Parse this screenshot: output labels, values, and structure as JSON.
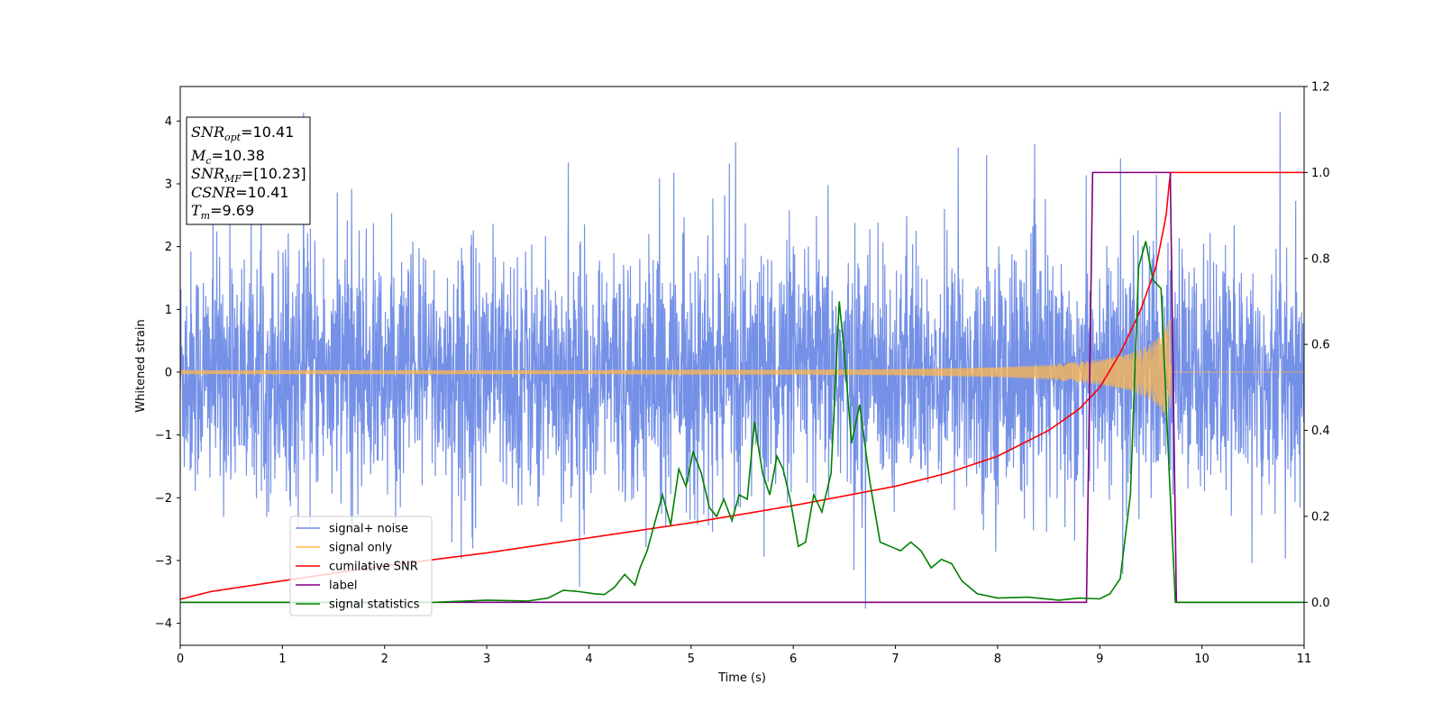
{
  "chart_data": {
    "type": "line",
    "xlabel": "Time (s)",
    "ylabel": "Whitened strain",
    "xlim": [
      0,
      11
    ],
    "ylim_left": [
      -4.35,
      4.55
    ],
    "ylim_right": [
      -0.1,
      1.2
    ],
    "xticks": [
      0,
      1,
      2,
      3,
      4,
      5,
      6,
      7,
      8,
      9,
      10,
      11
    ],
    "yticks_left": [
      -4,
      -3,
      -2,
      -1,
      0,
      1,
      2,
      3,
      4
    ],
    "yticks_right": [
      0.0,
      0.2,
      0.4,
      0.6,
      0.8,
      1.0,
      1.2
    ],
    "legend_placement": "lower-left",
    "series": [
      {
        "name": "signal+ noise",
        "axis": "left",
        "color": "#6d8ae6",
        "description_only": true,
        "approx_envelope": {
          "lower": [
            -3.5,
            -4.0
          ],
          "upper": [
            3.7,
            4.2
          ]
        }
      },
      {
        "name": "signal only",
        "axis": "left",
        "color": "#ffb84d",
        "x": [
          0,
          2,
          4,
          5,
          6,
          7,
          8,
          8.5,
          9,
          9.3,
          9.5,
          9.6,
          9.69,
          9.7,
          11
        ],
        "amplitude": [
          0.03,
          0.03,
          0.03,
          0.04,
          0.04,
          0.05,
          0.08,
          0.12,
          0.2,
          0.3,
          0.45,
          0.6,
          0.85,
          0,
          0
        ]
      },
      {
        "name": "cumilative SNR",
        "axis": "right",
        "color": "#ff0000",
        "x": [
          0,
          0.3,
          1,
          2,
          3,
          4,
          5,
          6,
          7,
          7.5,
          8,
          8.5,
          8.8,
          9,
          9.2,
          9.4,
          9.55,
          9.65,
          9.69,
          9.7,
          11
        ],
        "values": [
          0.007,
          0.025,
          0.05,
          0.085,
          0.115,
          0.15,
          0.185,
          0.225,
          0.27,
          0.3,
          0.34,
          0.4,
          0.45,
          0.5,
          0.58,
          0.68,
          0.78,
          0.9,
          1.0,
          1.0,
          1.0
        ]
      },
      {
        "name": "label",
        "axis": "right",
        "color": "#800080",
        "x": [
          0,
          8.87,
          8.93,
          9.69,
          9.75,
          11
        ],
        "values": [
          0,
          0,
          1,
          1,
          0,
          0
        ]
      },
      {
        "name": "signal statistics",
        "axis": "right",
        "color": "#008000",
        "x": [
          0,
          2.5,
          3,
          3.4,
          3.6,
          3.75,
          3.9,
          4.05,
          4.15,
          4.25,
          4.35,
          4.45,
          4.5,
          4.57,
          4.65,
          4.72,
          4.8,
          4.88,
          4.95,
          5.02,
          5.1,
          5.18,
          5.25,
          5.32,
          5.4,
          5.47,
          5.55,
          5.62,
          5.7,
          5.77,
          5.84,
          5.9,
          5.97,
          6.05,
          6.12,
          6.2,
          6.28,
          6.37,
          6.45,
          6.5,
          6.57,
          6.65,
          6.75,
          6.85,
          6.95,
          7.05,
          7.15,
          7.25,
          7.35,
          7.45,
          7.55,
          7.65,
          7.8,
          8.0,
          8.3,
          8.6,
          8.8,
          9.0,
          9.1,
          9.2,
          9.3,
          9.38,
          9.45,
          9.52,
          9.6,
          9.68,
          9.74,
          9.8,
          11
        ],
        "values": [
          0,
          0,
          0.005,
          0.003,
          0.01,
          0.028,
          0.025,
          0.02,
          0.018,
          0.035,
          0.065,
          0.04,
          0.08,
          0.12,
          0.19,
          0.25,
          0.18,
          0.31,
          0.27,
          0.35,
          0.3,
          0.22,
          0.2,
          0.24,
          0.19,
          0.25,
          0.24,
          0.42,
          0.3,
          0.25,
          0.34,
          0.31,
          0.24,
          0.13,
          0.14,
          0.25,
          0.21,
          0.3,
          0.7,
          0.58,
          0.37,
          0.46,
          0.28,
          0.14,
          0.13,
          0.12,
          0.14,
          0.12,
          0.08,
          0.1,
          0.09,
          0.05,
          0.02,
          0.01,
          0.012,
          0.005,
          0.01,
          0.008,
          0.02,
          0.055,
          0.25,
          0.78,
          0.84,
          0.75,
          0.73,
          0.3,
          0.0,
          0.0,
          0.0
        ]
      }
    ],
    "annotation": {
      "lines": [
        {
          "sym": "SNR",
          "sub": "opt",
          "value": "=10.41"
        },
        {
          "sym": "M",
          "sub": "c",
          "value": "=10.38"
        },
        {
          "sym": "SNR",
          "sub": "MF",
          "value": "=[10.23]"
        },
        {
          "sym": "CSNR",
          "sub": "",
          "value": "=10.41"
        },
        {
          "sym": "T",
          "sub": "m",
          "value": "=9.69"
        }
      ]
    },
    "legend": [
      {
        "label": "signal+ noise",
        "color": "#6d8ae6"
      },
      {
        "label": "signal only",
        "color": "#ffb84d"
      },
      {
        "label": "cumilative SNR",
        "color": "#ff0000"
      },
      {
        "label": "label",
        "color": "#800080"
      },
      {
        "label": "signal statistics",
        "color": "#008000"
      }
    ]
  }
}
